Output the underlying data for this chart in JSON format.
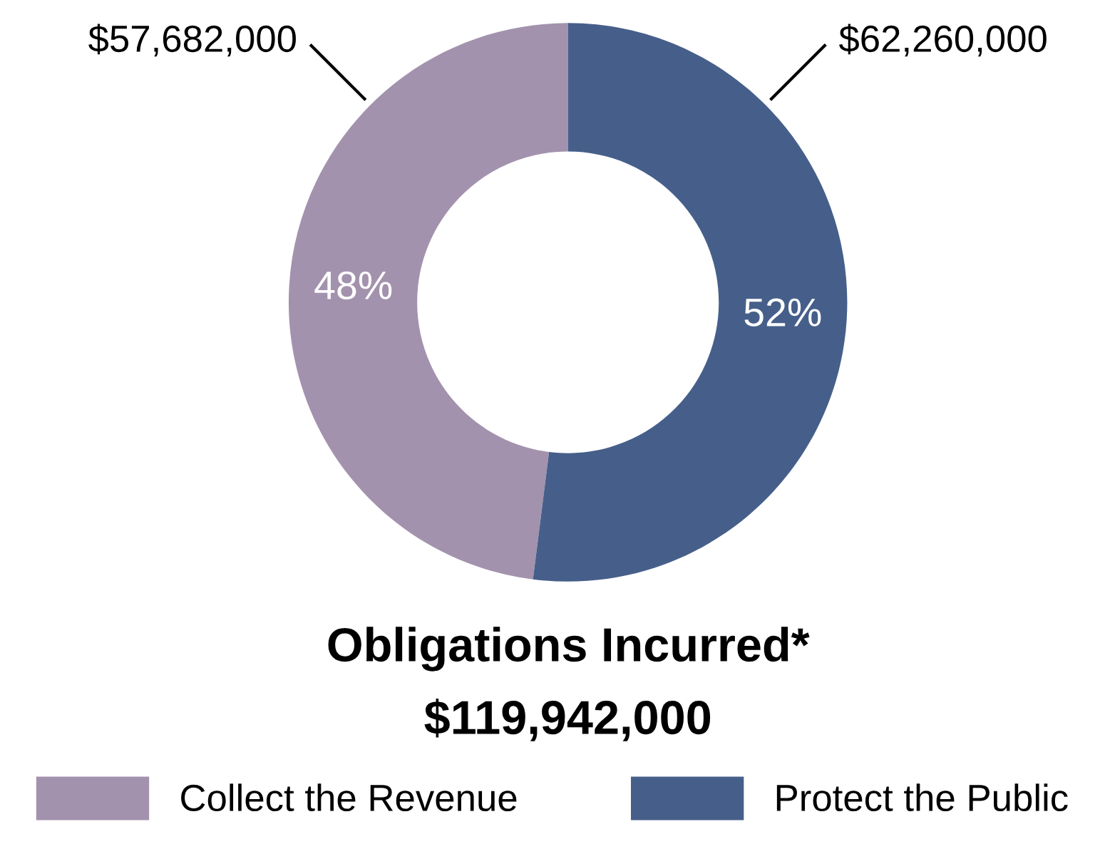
{
  "chart_data": {
    "type": "donut",
    "title": "Obligations Incurred*",
    "subtitle": "$119,942,000",
    "categories": [
      "Collect the Revenue",
      "Protect the Public"
    ],
    "values": [
      48,
      52
    ],
    "colors": [
      "#a392ad",
      "#465f8a"
    ],
    "value_labels": [
      "48%",
      "52%"
    ],
    "annotations": [
      "$57,682,000",
      "$62,260,000"
    ],
    "legend": "bottom"
  }
}
